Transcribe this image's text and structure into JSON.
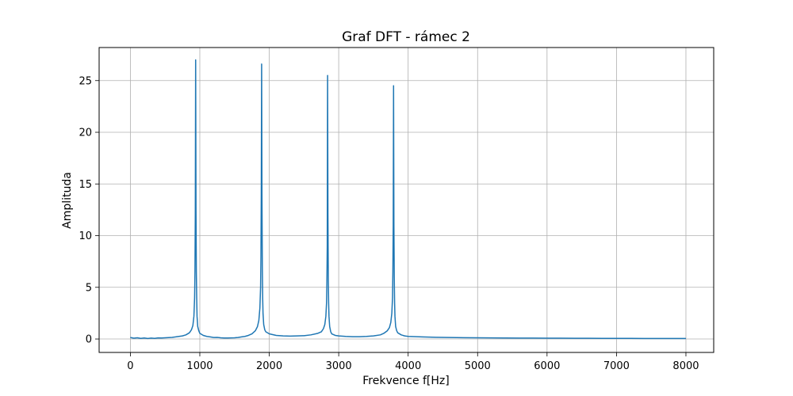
{
  "chart_data": {
    "type": "line",
    "title": "Graf DFT - rámec 2",
    "xlabel": "Frekvence f[Hz]",
    "ylabel": "Amplituda",
    "xlim": [
      -450,
      8400
    ],
    "ylim": [
      -1.3,
      28.2
    ],
    "xticks": [
      0,
      1000,
      2000,
      3000,
      4000,
      5000,
      6000,
      7000,
      8000
    ],
    "yticks": [
      0,
      5,
      10,
      15,
      20,
      25
    ],
    "grid": true,
    "line_color": "#1f77b4",
    "series": [
      {
        "x": [
          0,
          50,
          100,
          150,
          200,
          250,
          300,
          350,
          400,
          450,
          500,
          550,
          600,
          650,
          700,
          750,
          800,
          850,
          880,
          900,
          915,
          925,
          930,
          935,
          940,
          945,
          950,
          955,
          960,
          970,
          985,
          1000,
          1050,
          1100,
          1150,
          1200,
          1250,
          1300,
          1350,
          1400,
          1450,
          1500,
          1550,
          1600,
          1650,
          1700,
          1750,
          1800,
          1830,
          1850,
          1865,
          1875,
          1880,
          1885,
          1890,
          1895,
          1900,
          1905,
          1910,
          1920,
          1935,
          1950,
          2000,
          2100,
          2200,
          2300,
          2400,
          2500,
          2600,
          2700,
          2750,
          2780,
          2800,
          2815,
          2825,
          2830,
          2835,
          2840,
          2845,
          2850,
          2855,
          2860,
          2870,
          2885,
          2900,
          2950,
          3000,
          3100,
          3200,
          3300,
          3400,
          3500,
          3600,
          3650,
          3700,
          3730,
          3750,
          3765,
          3775,
          3780,
          3785,
          3790,
          3795,
          3800,
          3805,
          3810,
          3820,
          3835,
          3850,
          3900,
          3950,
          4000,
          4200,
          4400,
          4600,
          4800,
          5000,
          5200,
          5400,
          5600,
          5800,
          6000,
          6200,
          6400,
          6600,
          6800,
          7000,
          7200,
          7400,
          7600,
          7800,
          8000
        ],
        "values": [
          0.15,
          0.08,
          0.12,
          0.06,
          0.1,
          0.05,
          0.09,
          0.06,
          0.11,
          0.1,
          0.12,
          0.14,
          0.16,
          0.2,
          0.25,
          0.3,
          0.4,
          0.6,
          0.9,
          1.3,
          2.2,
          4.0,
          6.5,
          12.0,
          27.0,
          12.5,
          6.5,
          4.0,
          2.2,
          1.2,
          0.8,
          0.55,
          0.35,
          0.25,
          0.2,
          0.15,
          0.16,
          0.12,
          0.1,
          0.1,
          0.11,
          0.12,
          0.15,
          0.2,
          0.25,
          0.35,
          0.5,
          0.8,
          1.2,
          1.8,
          3.0,
          5.0,
          8.0,
          14.0,
          26.6,
          14.0,
          7.0,
          4.0,
          2.5,
          1.4,
          0.9,
          0.7,
          0.5,
          0.35,
          0.3,
          0.28,
          0.3,
          0.32,
          0.4,
          0.55,
          0.7,
          1.0,
          1.4,
          2.2,
          3.5,
          5.5,
          9.0,
          25.5,
          12.0,
          6.0,
          3.5,
          2.2,
          1.2,
          0.7,
          0.5,
          0.35,
          0.3,
          0.25,
          0.22,
          0.22,
          0.25,
          0.3,
          0.4,
          0.55,
          0.8,
          1.1,
          1.6,
          2.5,
          4.0,
          6.5,
          11.0,
          24.5,
          11.0,
          6.0,
          3.5,
          2.2,
          1.2,
          0.8,
          0.6,
          0.4,
          0.3,
          0.25,
          0.2,
          0.17,
          0.15,
          0.13,
          0.12,
          0.11,
          0.1,
          0.09,
          0.09,
          0.08,
          0.08,
          0.07,
          0.07,
          0.06,
          0.06,
          0.06,
          0.05,
          0.05,
          0.05,
          0.05
        ]
      }
    ]
  }
}
